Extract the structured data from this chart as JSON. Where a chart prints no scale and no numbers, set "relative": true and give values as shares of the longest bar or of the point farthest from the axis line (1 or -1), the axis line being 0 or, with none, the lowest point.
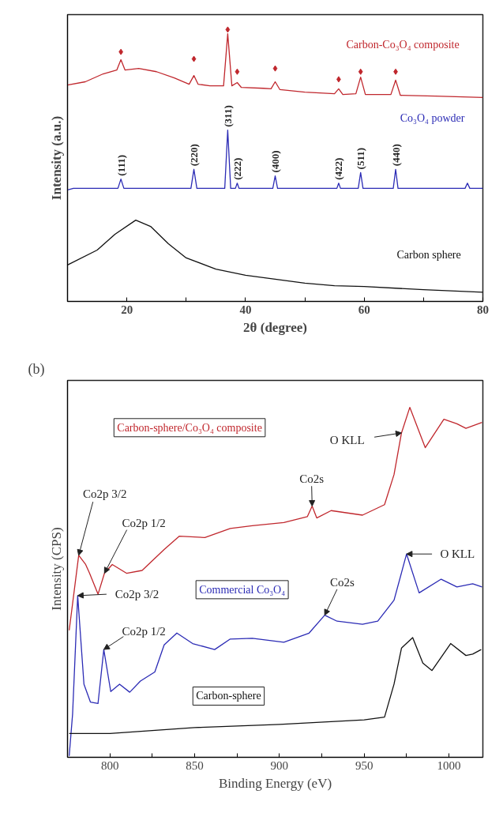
{
  "chart_data": [
    {
      "type": "line",
      "relative": true,
      "xlabel": "2θ (degree)",
      "ylabel": "Intensity (a.u.)",
      "xlim": [
        10,
        80
      ],
      "xticks": [
        {
          "value": 10,
          "label": null
        },
        20,
        {
          "value": 30,
          "label": null
        },
        40,
        {
          "value": 50,
          "label": null
        },
        60,
        {
          "value": 70,
          "label": null
        },
        80
      ],
      "tick_labels": "x",
      "grid": false,
      "series": [
        {
          "name": "Carbon-Co₃O₄ composite",
          "color": "#c0272d",
          "x": [
            10,
            13,
            16,
            18.3,
            19,
            19.7,
            22,
            25,
            28,
            30.5,
            31.3,
            32,
            34,
            36.3,
            37,
            37.7,
            38.6,
            39.3,
            43,
            44.3,
            45,
            45.8,
            50,
            55,
            55.7,
            56.4,
            58.6,
            59.4,
            60.2,
            64.5,
            65.3,
            66.1,
            72,
            80
          ],
          "values": [
            0.796,
            0.808,
            0.837,
            0.851,
            0.889,
            0.851,
            0.857,
            0.845,
            0.822,
            0.799,
            0.831,
            0.799,
            0.793,
            0.793,
            0.985,
            0.793,
            0.805,
            0.787,
            0.784,
            0.782,
            0.808,
            0.779,
            0.77,
            0.764,
            0.782,
            0.761,
            0.764,
            0.825,
            0.761,
            0.761,
            0.814,
            0.758,
            0.755,
            0.75
          ]
        },
        {
          "name": "Co₃O₄ powder",
          "color": "#2b2bb5",
          "x": [
            10,
            11,
            18.5,
            19,
            19.5,
            30.8,
            31.3,
            31.8,
            36.5,
            37,
            37.5,
            38.3,
            38.6,
            38.9,
            44.6,
            45,
            45.4,
            55.4,
            55.7,
            56,
            59,
            59.4,
            59.8,
            64.9,
            65.3,
            65.7,
            77,
            77.4,
            77.8,
            80
          ],
          "values": [
            0.41,
            0.416,
            0.416,
            0.45,
            0.416,
            0.416,
            0.486,
            0.416,
            0.416,
            0.63,
            0.416,
            0.416,
            0.435,
            0.416,
            0.416,
            0.462,
            0.416,
            0.416,
            0.435,
            0.416,
            0.416,
            0.474,
            0.416,
            0.416,
            0.486,
            0.416,
            0.416,
            0.435,
            0.416,
            0.416
          ]
        },
        {
          "name": "Carbon sphere",
          "color": "#111111",
          "x": [
            10,
            15,
            18,
            21.5,
            24,
            27,
            30,
            35,
            40,
            45,
            50,
            55,
            60,
            70,
            80
          ],
          "values": [
            0.134,
            0.189,
            0.247,
            0.299,
            0.276,
            0.212,
            0.16,
            0.119,
            0.096,
            0.082,
            0.067,
            0.058,
            0.055,
            0.043,
            0.034
          ]
        },
        {
          "type": "scatter",
          "marker": "diamond",
          "color": "#c0272d",
          "x": [
            19,
            31.3,
            37,
            38.6,
            45,
            55.7,
            59.4,
            65.3
          ],
          "values": [
            0.918,
            0.892,
            1.0,
            0.845,
            0.857,
            0.817,
            0.845,
            0.845
          ]
        }
      ],
      "annotations": [
        {
          "text": "(111)",
          "x": 19,
          "y": 0.45
        },
        {
          "text": "(220)",
          "x": 31.3,
          "y": 0.486
        },
        {
          "text": "(311)",
          "x": 37,
          "y": 0.63
        },
        {
          "text": "(222)",
          "x": 38.6,
          "y": 0.435
        },
        {
          "text": "(400)",
          "x": 45,
          "y": 0.462
        },
        {
          "text": "(422)",
          "x": 55.7,
          "y": 0.435
        },
        {
          "text": "(511)",
          "x": 59.4,
          "y": 0.474
        },
        {
          "text": "(440)",
          "x": 65.3,
          "y": 0.486
        }
      ]
    },
    {
      "type": "line",
      "relative": true,
      "xlabel": "Binding Energy (eV)",
      "ylabel": "Intensity (CPS)",
      "xlim": [
        775,
        1020
      ],
      "xticks": [
        800,
        {
          "value": 825,
          "label": null
        },
        850,
        {
          "value": 875,
          "label": null
        },
        900,
        {
          "value": 925,
          "label": null
        },
        950,
        {
          "value": 975,
          "label": null
        },
        1000
      ],
      "tick_labels": "x",
      "grid": false,
      "series": [
        {
          "name": "Carbon-sphere/Co₃O₄ composite",
          "color": "#c0272d",
          "x": [
            776,
            781.6,
            785.7,
            788,
            793,
            796.8,
            801.4,
            809.8,
            819,
            832,
            841,
            856,
            871,
            884,
            902.6,
            916.5,
            919.3,
            922,
            930.5,
            949,
            962,
            967.6,
            972,
            976.9,
            986,
            997,
            1004.7,
            1010,
            1019.5
          ],
          "values": [
            0.363,
            0.577,
            0.551,
            0.526,
            0.466,
            0.526,
            0.551,
            0.526,
            0.534,
            0.594,
            0.632,
            0.628,
            0.654,
            0.662,
            0.671,
            0.688,
            0.718,
            0.684,
            0.705,
            0.692,
            0.722,
            0.808,
            0.927,
            1.0,
            0.885,
            0.966,
            0.953,
            0.94,
            0.957
          ]
        },
        {
          "name": "Commercial Co₃O₄",
          "color": "#2b2bb5",
          "x": [
            776,
            778,
            781,
            784.7,
            788.5,
            793,
            796.4,
            800.5,
            805.7,
            811.7,
            818,
            826.5,
            832,
            839.5,
            848.8,
            861.8,
            871,
            884,
            902.6,
            917.5,
            926.7,
            934,
            949,
            958,
            967.6,
            975,
            982.4,
            995.4,
            1004.7,
            1014,
            1019.5
          ],
          "values": [
            0.004,
            0.124,
            0.462,
            0.209,
            0.158,
            0.154,
            0.308,
            0.188,
            0.209,
            0.186,
            0.218,
            0.244,
            0.321,
            0.355,
            0.325,
            0.308,
            0.338,
            0.34,
            0.329,
            0.355,
            0.406,
            0.389,
            0.38,
            0.389,
            0.449,
            0.581,
            0.47,
            0.509,
            0.487,
            0.496,
            0.487
          ]
        },
        {
          "name": "Carbon-sphere",
          "color": "#111111",
          "x": [
            776,
            800,
            850,
            900,
            950,
            962,
            967.6,
            972,
            978.6,
            984.6,
            990,
            1001,
            1010,
            1014,
            1019
          ],
          "values": [
            0.068,
            0.068,
            0.085,
            0.094,
            0.107,
            0.115,
            0.209,
            0.312,
            0.342,
            0.269,
            0.248,
            0.325,
            0.291,
            0.295,
            0.308
          ]
        }
      ],
      "annotations": [
        "(b)",
        {
          "text": "Co2p 3/2",
          "x": 781.6,
          "y": 0.577
        },
        {
          "text": "Co2p 1/2",
          "x": 796.8,
          "y": 0.526
        },
        {
          "text": "Co2s",
          "x": 919.3,
          "y": 0.718
        },
        {
          "text": "O KLL",
          "x": 972,
          "y": 0.927
        },
        {
          "text": "Co2p 3/2",
          "x": 781,
          "y": 0.462
        },
        {
          "text": "Co2p 1/2",
          "x": 796.4,
          "y": 0.308
        },
        {
          "text": "Co2s",
          "x": 926.7,
          "y": 0.406
        },
        {
          "text": "O KLL",
          "x": 975,
          "y": 0.581
        }
      ]
    }
  ]
}
